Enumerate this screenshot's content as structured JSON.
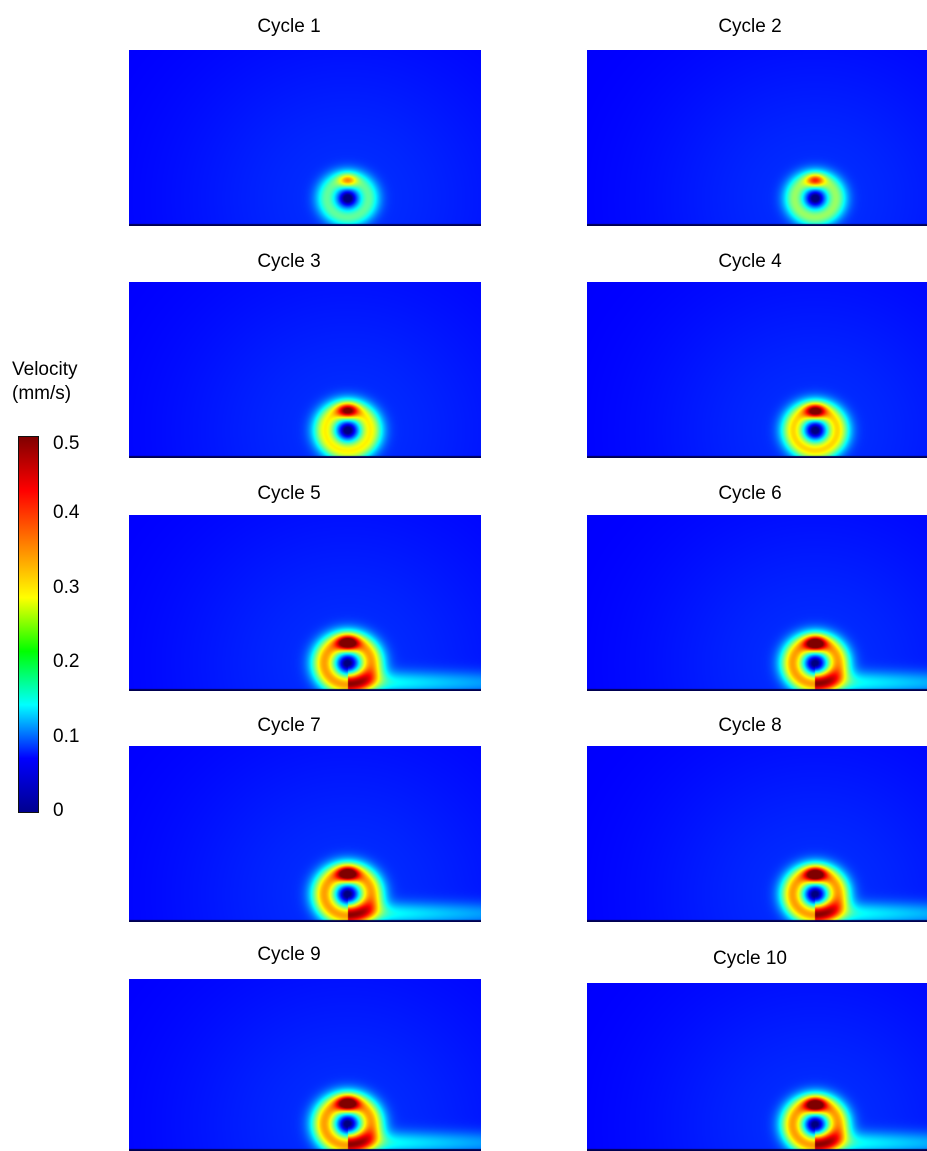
{
  "colorbar": {
    "title_line1": "Velocity",
    "title_line2": "(mm/s)",
    "ticks": [
      "0.5",
      "0.4",
      "0.3",
      "0.2",
      "0.1",
      "0"
    ],
    "colormap": [
      "#00008f",
      "#0000ff",
      "#00ffff",
      "#00ff00",
      "#ffff00",
      "#ff8000",
      "#ff0000",
      "#800000"
    ],
    "min": 0,
    "max": 0.5
  },
  "panels": [
    {
      "title": "Cycle 1",
      "intensity": 0.55
    },
    {
      "title": "Cycle 2",
      "intensity": 0.65
    },
    {
      "title": "Cycle 3",
      "intensity": 0.85
    },
    {
      "title": "Cycle 4",
      "intensity": 0.9
    },
    {
      "title": "Cycle 5",
      "intensity": 1.0
    },
    {
      "title": "Cycle 6",
      "intensity": 1.0
    },
    {
      "title": "Cycle 7",
      "intensity": 1.0
    },
    {
      "title": "Cycle 8",
      "intensity": 1.0
    },
    {
      "title": "Cycle 9",
      "intensity": 1.0
    },
    {
      "title": "Cycle 10",
      "intensity": 1.0
    }
  ]
}
